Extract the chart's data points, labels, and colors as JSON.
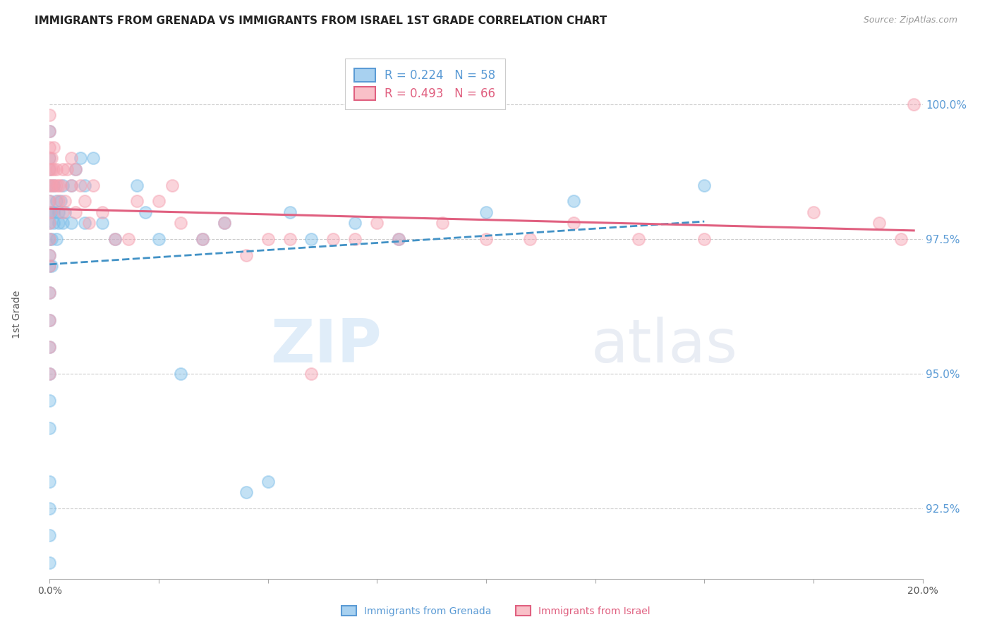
{
  "title": "IMMIGRANTS FROM GRENADA VS IMMIGRANTS FROM ISRAEL 1ST GRADE CORRELATION CHART",
  "source": "Source: ZipAtlas.com",
  "ylabel": "1st Grade",
  "right_yticks": [
    100.0,
    97.5,
    95.0,
    92.5
  ],
  "right_ytick_labels": [
    "100.0%",
    "97.5%",
    "95.0%",
    "92.5%"
  ],
  "xmin": 0.0,
  "xmax": 20.0,
  "ymin": 91.2,
  "ymax": 101.0,
  "legend_grenada": "Immigrants from Grenada",
  "legend_israel": "Immigrants from Israel",
  "R_grenada": 0.224,
  "N_grenada": 58,
  "R_israel": 0.493,
  "N_israel": 66,
  "color_grenada": "#7bbde8",
  "color_israel": "#f5a0b0",
  "watermark_zip": "ZIP",
  "watermark_atlas": "atlas",
  "grenada_x": [
    0.0,
    0.0,
    0.0,
    0.0,
    0.0,
    0.0,
    0.0,
    0.0,
    0.0,
    0.0,
    0.0,
    0.0,
    0.0,
    0.0,
    0.0,
    0.0,
    0.0,
    0.0,
    0.0,
    0.0,
    0.05,
    0.05,
    0.05,
    0.1,
    0.1,
    0.1,
    0.15,
    0.15,
    0.2,
    0.2,
    0.25,
    0.3,
    0.3,
    0.35,
    0.5,
    0.5,
    0.6,
    0.7,
    0.8,
    0.8,
    1.0,
    1.2,
    1.5,
    2.0,
    2.2,
    2.5,
    3.0,
    3.5,
    4.0,
    4.5,
    5.0,
    5.5,
    6.0,
    7.0,
    8.0,
    10.0,
    12.0,
    15.0
  ],
  "grenada_y": [
    91.5,
    92.0,
    92.5,
    93.0,
    94.0,
    94.5,
    95.0,
    95.5,
    96.0,
    96.5,
    97.0,
    97.2,
    97.5,
    97.8,
    98.0,
    98.2,
    98.5,
    98.8,
    99.0,
    99.5,
    97.0,
    97.5,
    98.0,
    97.8,
    98.0,
    98.5,
    97.5,
    98.2,
    97.8,
    98.0,
    98.2,
    98.5,
    97.8,
    98.0,
    97.8,
    98.5,
    98.8,
    99.0,
    98.5,
    97.8,
    99.0,
    97.8,
    97.5,
    98.5,
    98.0,
    97.5,
    95.0,
    97.5,
    97.8,
    92.8,
    93.0,
    98.0,
    97.5,
    97.8,
    97.5,
    98.0,
    98.2,
    98.5
  ],
  "israel_x": [
    0.0,
    0.0,
    0.0,
    0.0,
    0.0,
    0.0,
    0.0,
    0.0,
    0.0,
    0.0,
    0.0,
    0.0,
    0.0,
    0.05,
    0.05,
    0.05,
    0.1,
    0.1,
    0.1,
    0.15,
    0.15,
    0.2,
    0.2,
    0.25,
    0.3,
    0.3,
    0.35,
    0.4,
    0.5,
    0.5,
    0.6,
    0.6,
    0.7,
    0.8,
    0.9,
    1.0,
    1.2,
    1.5,
    1.8,
    2.0,
    2.5,
    2.8,
    3.0,
    3.5,
    4.0,
    4.5,
    5.0,
    5.5,
    6.0,
    6.5,
    7.0,
    7.5,
    8.0,
    9.0,
    10.0,
    11.0,
    12.0,
    13.5,
    15.0,
    17.5,
    19.0,
    19.5,
    19.8,
    0.0,
    0.0,
    0.0
  ],
  "israel_y": [
    96.5,
    97.0,
    97.2,
    97.5,
    97.8,
    98.0,
    98.2,
    98.5,
    98.8,
    99.0,
    99.2,
    99.5,
    99.8,
    98.5,
    99.0,
    98.8,
    98.5,
    98.8,
    99.2,
    98.5,
    98.8,
    98.5,
    98.2,
    98.5,
    98.8,
    98.0,
    98.2,
    98.8,
    99.0,
    98.5,
    98.8,
    98.0,
    98.5,
    98.2,
    97.8,
    98.5,
    98.0,
    97.5,
    97.5,
    98.2,
    98.2,
    98.5,
    97.8,
    97.5,
    97.8,
    97.2,
    97.5,
    97.5,
    95.0,
    97.5,
    97.5,
    97.8,
    97.5,
    97.8,
    97.5,
    97.5,
    97.8,
    97.5,
    97.5,
    98.0,
    97.8,
    97.5,
    100.0,
    96.0,
    95.5,
    95.0
  ]
}
